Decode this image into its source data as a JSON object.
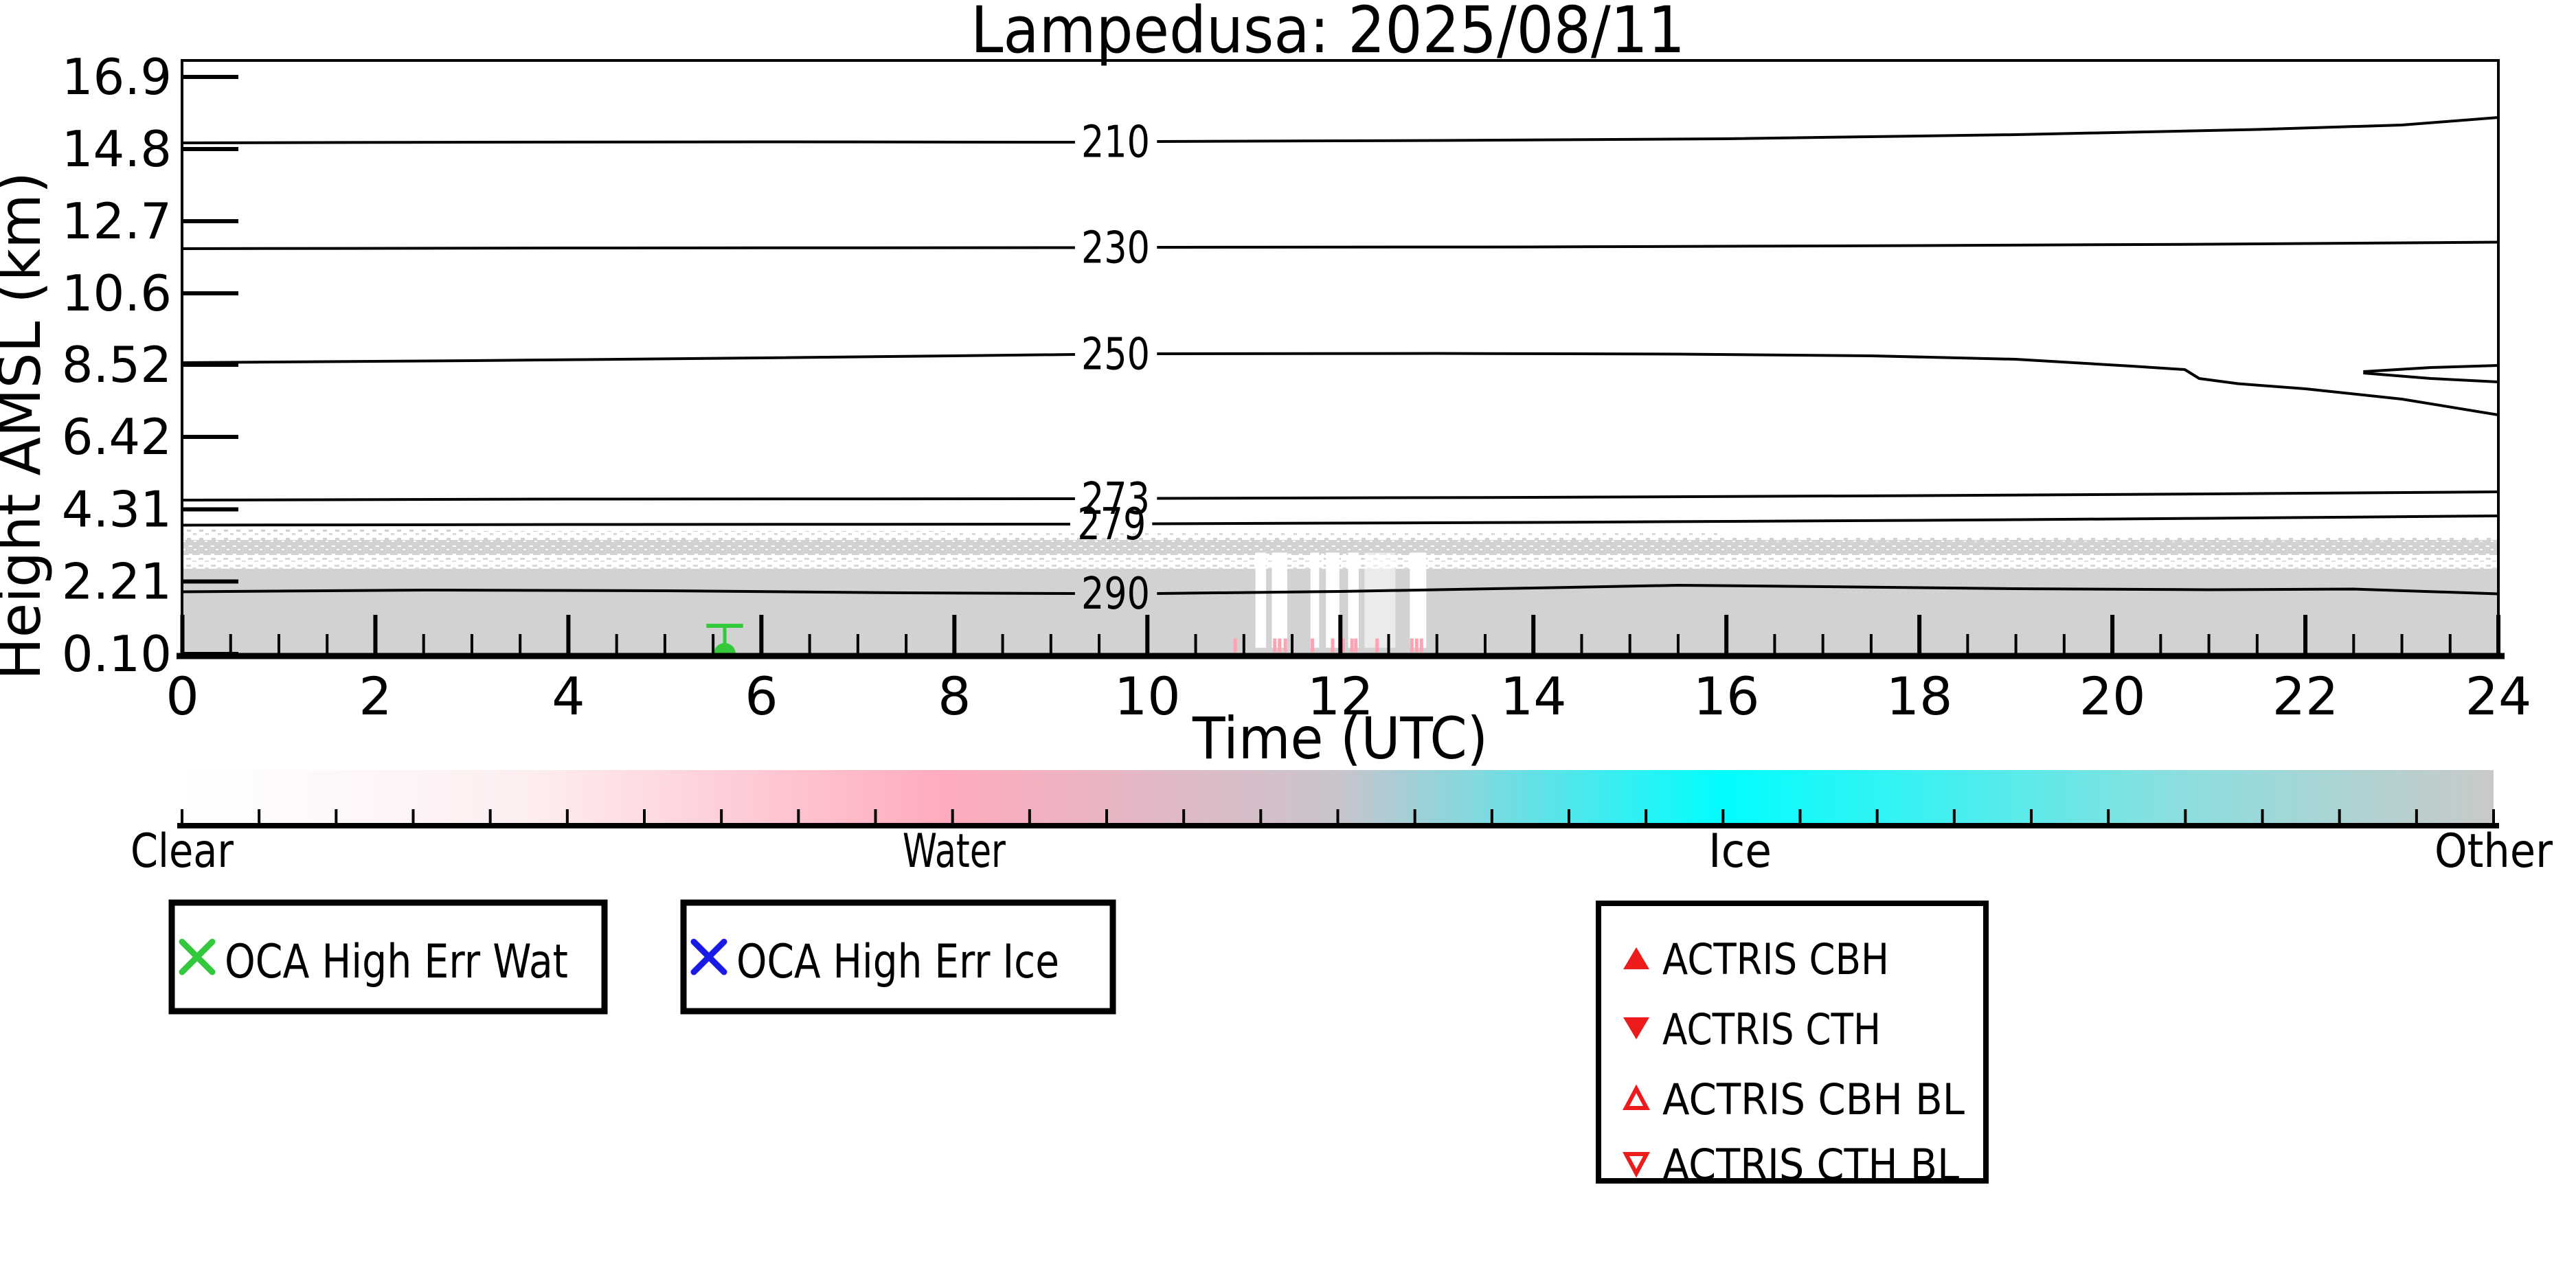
{
  "chart_data": {
    "type": "heatmap",
    "title": "Lampedusa: 2025/08/11",
    "xlabel": "Time (UTC)",
    "ylabel": "Height AMSL (km)",
    "xlim": [
      0,
      24
    ],
    "x_ticks": [
      0,
      2,
      4,
      6,
      8,
      10,
      12,
      14,
      16,
      18,
      20,
      22,
      24
    ],
    "x_minor_tick_step": 0.5,
    "y_tick_labels": [
      "16.9",
      "14.8",
      "12.7",
      "10.6",
      "8.52",
      "6.42",
      "4.31",
      "2.21",
      "0.10"
    ],
    "y_ticks_km": [
      16.9,
      14.8,
      12.7,
      10.6,
      8.52,
      6.42,
      4.31,
      2.21,
      0.1
    ],
    "ylim_km": [
      0.04,
      17.38
    ],
    "grid": false,
    "isotherms_K": [
      {
        "level": "210",
        "label_time_h": 9.67,
        "segments_h_km": [
          [
            [
              0,
              14.98
            ],
            [
              3,
              15.0
            ],
            [
              6,
              15.01
            ],
            [
              9.25,
              15.0
            ]
          ],
          [
            [
              10.1,
              15.02
            ],
            [
              13,
              15.05
            ],
            [
              16,
              15.1
            ],
            [
              19,
              15.22
            ],
            [
              21.5,
              15.37
            ],
            [
              23,
              15.5
            ],
            [
              24,
              15.72
            ]
          ]
        ]
      },
      {
        "level": "230",
        "label_time_h": 9.67,
        "segments_h_km": [
          [
            [
              0,
              11.9
            ],
            [
              4,
              11.92
            ],
            [
              9.25,
              11.93
            ]
          ],
          [
            [
              10.1,
              11.94
            ],
            [
              14,
              11.95
            ],
            [
              18,
              11.99
            ],
            [
              21,
              12.03
            ],
            [
              24,
              12.09
            ]
          ]
        ]
      },
      {
        "level": "250",
        "label_time_h": 9.67,
        "segments_h_km": [
          [
            [
              0,
              8.58
            ],
            [
              3,
              8.64
            ],
            [
              6,
              8.72
            ],
            [
              9.25,
              8.82
            ]
          ],
          [
            [
              10.1,
              8.84
            ],
            [
              13,
              8.85
            ],
            [
              15.5,
              8.83
            ],
            [
              17.5,
              8.78
            ],
            [
              19,
              8.68
            ],
            [
              20.2,
              8.48
            ],
            [
              20.75,
              8.38
            ],
            [
              20.9,
              8.12
            ],
            [
              21.3,
              7.97
            ],
            [
              22,
              7.82
            ],
            [
              23,
              7.52
            ],
            [
              24,
              7.06
            ]
          ]
        ],
        "extra_segments_h_km": [
          [
            [
              22.6,
              8.32
            ],
            [
              23.3,
              8.44
            ],
            [
              24,
              8.5
            ]
          ],
          [
            [
              22.6,
              8.28
            ],
            [
              23.3,
              8.12
            ],
            [
              24,
              8.02
            ]
          ]
        ]
      },
      {
        "level": "273",
        "label_time_h": 9.67,
        "segments_h_km": [
          [
            [
              0,
              4.58
            ],
            [
              4,
              4.61
            ],
            [
              9.25,
              4.62
            ]
          ],
          [
            [
              10.1,
              4.63
            ],
            [
              14,
              4.66
            ],
            [
              18,
              4.71
            ],
            [
              21,
              4.76
            ],
            [
              24,
              4.82
            ]
          ]
        ]
      },
      {
        "level": "279",
        "label_time_h": 9.63,
        "segments_h_km": [
          [
            [
              0,
              3.85
            ],
            [
              4,
              3.87
            ],
            [
              9.2,
              3.88
            ]
          ],
          [
            [
              10.05,
              3.89
            ],
            [
              14,
              3.93
            ],
            [
              18,
              3.99
            ],
            [
              21,
              4.05
            ],
            [
              24,
              4.12
            ]
          ]
        ]
      },
      {
        "level": "290",
        "label_time_h": 9.67,
        "segments_h_km": [
          [
            [
              0,
              1.91
            ],
            [
              2.5,
              1.96
            ],
            [
              5,
              1.94
            ],
            [
              7.5,
              1.88
            ],
            [
              9.25,
              1.86
            ]
          ],
          [
            [
              10.1,
              1.86
            ],
            [
              12,
              1.92
            ],
            [
              14,
              2.02
            ],
            [
              15.5,
              2.1
            ],
            [
              17,
              2.06
            ],
            [
              19,
              2.0
            ],
            [
              21,
              1.97
            ],
            [
              22.5,
              1.99
            ],
            [
              24,
              1.85
            ]
          ]
        ]
      }
    ],
    "cloud_classification_band": {
      "category": "Other",
      "color": "#d2d2d2",
      "solid_km": [
        0.04,
        2.58
      ],
      "dither_gap_km": [
        2.58,
        2.98
      ],
      "medium_km": [
        2.98,
        3.42
      ],
      "sparse_top_segments": [
        {
          "h": [
            0,
            3
          ],
          "km": [
            3.42,
            3.78
          ]
        },
        {
          "h": [
            3,
            8
          ],
          "km": [
            3.42,
            3.68
          ]
        },
        {
          "h": [
            8,
            16
          ],
          "km": [
            3.38,
            3.62
          ]
        },
        {
          "h": [
            16,
            24
          ],
          "km": [
            3.3,
            3.55
          ]
        }
      ],
      "clear_gaps_h": [
        [
          11.12,
          11.23
        ],
        [
          11.29,
          11.45
        ],
        [
          11.69,
          11.78
        ],
        [
          11.85,
          11.99
        ],
        [
          12.08,
          12.19
        ],
        [
          12.25,
          12.57
        ],
        [
          12.72,
          12.89
        ]
      ],
      "gap_km": [
        0.28,
        3.05
      ],
      "precip_marks": {
        "color": "#ffa2b2",
        "km": [
          0.15,
          0.55
        ],
        "times_h": [
          10.91,
          11.32,
          11.37,
          11.43,
          11.71,
          11.92,
          12.03,
          12.12,
          12.16,
          12.38,
          12.74,
          12.79,
          12.84
        ]
      }
    },
    "oca_high_err_wat_point": {
      "time_h": 5.62,
      "height_km": 0.1,
      "err_top_km": 0.92,
      "cap_halfwidth_h": 0.19,
      "color": "#34c93c"
    }
  },
  "colorbar": {
    "categories": [
      {
        "label": "Clear",
        "frac": 0.0
      },
      {
        "label": "Water",
        "frac": 0.334
      },
      {
        "label": "Ice",
        "frac": 0.674
      },
      {
        "label": "Other",
        "frac": 1.0
      }
    ],
    "gradient_stops": [
      [
        "0",
        "#ffffff"
      ],
      [
        "0.15",
        "#fdeef0"
      ],
      [
        "0.33",
        "#ffabbd"
      ],
      [
        "0.5",
        "#c9c4cc"
      ],
      [
        "0.667",
        "#00feff"
      ],
      [
        "0.86",
        "#8adfdf"
      ],
      [
        "1",
        "#c9c9c9"
      ]
    ],
    "tick_count": 31
  },
  "legend_boxes": {
    "oca_wat": {
      "label": "OCA High Err Wat",
      "marker": "x",
      "color": "#34c93c"
    },
    "oca_ice": {
      "label": "OCA High Err Ice",
      "marker": "x",
      "color": "#1a1ae6"
    },
    "actris": {
      "color": "#ed1c1c",
      "items": [
        {
          "label": "ACTRIS CBH",
          "marker": "triangle-up-filled"
        },
        {
          "label": "ACTRIS CTH",
          "marker": "triangle-down-filled"
        },
        {
          "label": "ACTRIS CBH BL",
          "marker": "triangle-up-open"
        },
        {
          "label": "ACTRIS CTH BL",
          "marker": "triangle-down-open"
        }
      ]
    }
  }
}
